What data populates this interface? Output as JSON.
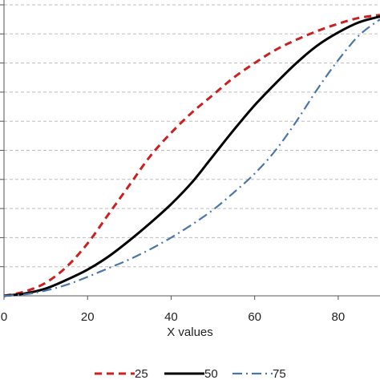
{
  "chart_data": {
    "type": "line",
    "title": "",
    "xlabel": "X values",
    "ylabel": "",
    "xlim": [
      0,
      90
    ],
    "ylim": [
      0,
      1
    ],
    "x_ticks": [
      "0",
      "20",
      "40",
      "60",
      "80"
    ],
    "grid": "horizontal-dashed",
    "legend_placement": "bottom",
    "series": [
      {
        "name": "25",
        "color": "#cc1f1f",
        "style": "dashed",
        "x": [
          0,
          5,
          10,
          15,
          20,
          25,
          30,
          35,
          40,
          45,
          50,
          55,
          60,
          65,
          70,
          75,
          80,
          85,
          90
        ],
        "y": [
          0.0,
          0.015,
          0.045,
          0.1,
          0.18,
          0.28,
          0.38,
          0.48,
          0.56,
          0.63,
          0.69,
          0.75,
          0.8,
          0.845,
          0.88,
          0.91,
          0.935,
          0.955,
          0.965
        ]
      },
      {
        "name": "50",
        "color": "#000000",
        "style": "solid",
        "x": [
          0,
          5,
          10,
          15,
          20,
          25,
          30,
          35,
          40,
          45,
          50,
          55,
          60,
          65,
          70,
          75,
          80,
          85,
          90
        ],
        "y": [
          0.0,
          0.008,
          0.025,
          0.055,
          0.09,
          0.135,
          0.19,
          0.25,
          0.315,
          0.39,
          0.48,
          0.57,
          0.655,
          0.73,
          0.8,
          0.86,
          0.905,
          0.94,
          0.96
        ]
      },
      {
        "name": "75",
        "color": "#4a77a8",
        "style": "dashdot",
        "x": [
          0,
          5,
          10,
          15,
          20,
          25,
          30,
          35,
          40,
          45,
          50,
          55,
          60,
          65,
          70,
          75,
          80,
          85,
          90
        ],
        "y": [
          0.0,
          0.005,
          0.018,
          0.038,
          0.065,
          0.095,
          0.125,
          0.16,
          0.2,
          0.245,
          0.295,
          0.355,
          0.42,
          0.5,
          0.6,
          0.71,
          0.81,
          0.895,
          0.95
        ]
      }
    ]
  }
}
